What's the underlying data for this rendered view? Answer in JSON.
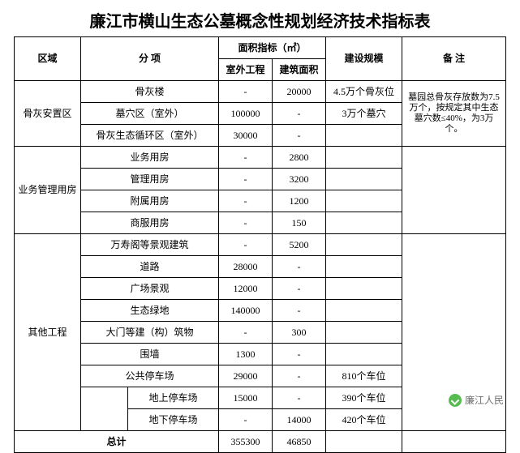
{
  "title": "廉江市横山生态公墓概念性规划经济技术指标表",
  "headers": {
    "region": "区域",
    "item": "分 项",
    "area_group": "面积指标（㎡）",
    "outdoor": "室外工程",
    "building": "建筑面积",
    "scale": "建设规模",
    "note": "备 注"
  },
  "groups": [
    {
      "region": "骨灰安置区",
      "rows": [
        {
          "item": "骨灰楼",
          "outdoor": "-",
          "building": "20000",
          "scale": "4.5万个骨灰位"
        },
        {
          "item": "墓穴区（室外）",
          "outdoor": "100000",
          "building": "-",
          "scale": "3万个墓穴"
        },
        {
          "item": "骨灰生态循环区（室外）",
          "outdoor": "30000",
          "building": "-",
          "scale": ""
        }
      ],
      "note": "墓园总骨灰存放数为7.5万个，按规定其中生态墓穴数≤40%，为3万个。"
    },
    {
      "region": "业务管理用房",
      "rows": [
        {
          "item": "业务用房",
          "outdoor": "-",
          "building": "2800",
          "scale": ""
        },
        {
          "item": "管理用房",
          "outdoor": "-",
          "building": "3200",
          "scale": ""
        },
        {
          "item": "附属用房",
          "outdoor": "-",
          "building": "1200",
          "scale": ""
        },
        {
          "item": "商服用房",
          "outdoor": "-",
          "building": "150",
          "scale": ""
        }
      ],
      "note": ""
    },
    {
      "region": "其他工程",
      "rows": [
        {
          "item": "万寿阁等景观建筑",
          "outdoor": "-",
          "building": "5200",
          "scale": ""
        },
        {
          "item": "道路",
          "outdoor": "28000",
          "building": "-",
          "scale": ""
        },
        {
          "item": "广场景观",
          "outdoor": "12000",
          "building": "-",
          "scale": ""
        },
        {
          "item": "生态绿地",
          "outdoor": "140000",
          "building": "-",
          "scale": ""
        },
        {
          "item": "大门等建（构）筑物",
          "outdoor": "-",
          "building": "300",
          "scale": ""
        },
        {
          "item": "围墙",
          "outdoor": "1300",
          "building": "-",
          "scale": ""
        },
        {
          "item": "公共停车场",
          "outdoor": "29000",
          "building": "-",
          "scale": "810个车位"
        }
      ],
      "subrows": [
        {
          "item": "地上停车场",
          "outdoor": "15000",
          "building": "-",
          "scale": "390个车位"
        },
        {
          "item": "地下停车场",
          "outdoor": "-",
          "building": "14000",
          "scale": "420个车位"
        }
      ],
      "note": ""
    }
  ],
  "total": {
    "label": "总计",
    "outdoor": "355300",
    "building": "46850",
    "scale": "",
    "note": ""
  },
  "watermark": "廉江人民",
  "colors": {
    "border": "#000000",
    "background": "#ffffff",
    "text": "#000000",
    "watermark_icon": "#3cb034"
  }
}
